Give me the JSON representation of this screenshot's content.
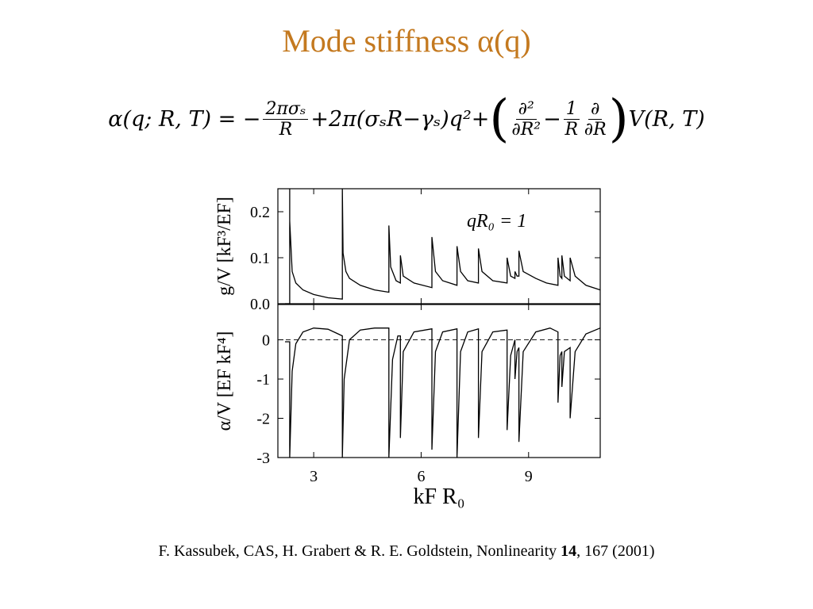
{
  "title": "Mode stiffness α(q)",
  "equation": [
    "α(q; R, T) = −",
    {
      "num": "2πσₛ",
      "den": "R"
    },
    "+2π(σₛR−γₛ)q²+",
    "(",
    {
      "num": "∂²",
      "den": "∂R²"
    },
    "−",
    {
      "num": "1",
      "den": "R"
    },
    {
      "num": "∂",
      "den": "∂R"
    },
    ")",
    "V(R, T)"
  ],
  "chart_data": [
    {
      "type": "line",
      "y_label": "g/V [kF³/EF]",
      "annotation": "qR₀ = 1",
      "x": [
        2.2,
        2.33,
        2.33,
        2.33,
        2.4,
        2.5,
        2.7,
        3.0,
        3.4,
        3.8,
        3.8,
        3.82,
        3.9,
        4.0,
        4.3,
        4.7,
        5.1,
        5.1,
        5.15,
        5.3,
        5.42,
        5.42,
        5.5,
        5.8,
        6.3,
        6.3,
        6.4,
        6.6,
        7.0,
        7.0,
        7.1,
        7.3,
        7.6,
        7.6,
        7.7,
        8.0,
        8.4,
        8.4,
        8.5,
        8.62,
        8.62,
        8.68,
        8.73,
        8.73,
        8.85,
        9.2,
        9.5,
        9.82,
        9.82,
        9.88,
        9.93,
        9.93,
        10.0,
        10.16,
        10.16,
        10.3,
        10.6,
        11.0
      ],
      "series": [
        {
          "color": "#000000",
          "values": [
            0,
            0,
            0.25,
            0.18,
            0.07,
            0.045,
            0.03,
            0.02,
            0.013,
            0.01,
            0.25,
            0.11,
            0.07,
            0.055,
            0.04,
            0.03,
            0.025,
            0.17,
            0.08,
            0.05,
            0.045,
            0.105,
            0.06,
            0.045,
            0.035,
            0.145,
            0.07,
            0.05,
            0.04,
            0.125,
            0.07,
            0.05,
            0.045,
            0.12,
            0.07,
            0.05,
            0.045,
            0.1,
            0.06,
            0.055,
            0.07,
            0.06,
            0.06,
            0.115,
            0.07,
            0.055,
            0.045,
            0.04,
            0.1,
            0.06,
            0.055,
            0.105,
            0.06,
            0.05,
            0.1,
            0.06,
            0.04,
            0.03
          ]
        }
      ],
      "xlim": [
        2,
        11
      ],
      "xticks": [
        3,
        6,
        9
      ],
      "ylim": [
        0,
        0.25
      ],
      "yticks": [
        {
          "value": 0,
          "label": "0.0"
        },
        0.1,
        0.2
      ]
    },
    {
      "type": "line",
      "y_label": "α/V [EF kF⁴]",
      "x_label": "kF R₀",
      "hline": 0,
      "x": [
        2.2,
        2.33,
        2.33,
        2.4,
        2.5,
        2.7,
        3.0,
        3.4,
        3.8,
        3.8,
        3.85,
        4.0,
        4.3,
        4.7,
        5.1,
        5.1,
        5.2,
        5.35,
        5.42,
        5.42,
        5.5,
        5.8,
        6.3,
        6.3,
        6.4,
        6.6,
        7.0,
        7.0,
        7.1,
        7.3,
        7.6,
        7.6,
        7.7,
        8.0,
        8.4,
        8.4,
        8.5,
        8.62,
        8.62,
        8.68,
        8.73,
        8.73,
        8.85,
        9.2,
        9.6,
        9.82,
        9.82,
        9.88,
        9.93,
        9.93,
        10.0,
        10.16,
        10.16,
        10.3,
        10.6,
        11.0
      ],
      "series": [
        {
          "color": "#000000",
          "values": [
            -0.05,
            -0.05,
            -3,
            -0.8,
            -0.1,
            0.2,
            0.3,
            0.27,
            0.1,
            -3,
            -1,
            0,
            0.25,
            0.3,
            0.3,
            -3,
            -0.5,
            0.1,
            0.1,
            -2.5,
            -0.3,
            0.2,
            0.28,
            -2.8,
            -0.3,
            0.2,
            0.28,
            -3,
            -0.3,
            0.2,
            0.28,
            -2.5,
            -0.3,
            0.2,
            0.25,
            -2.3,
            -0.4,
            0,
            -1,
            -0.3,
            -0.2,
            -2.6,
            -0.3,
            0.2,
            0.3,
            0.2,
            -1.6,
            -0.4,
            -0.3,
            -1.2,
            -0.3,
            -0.2,
            -2,
            -0.3,
            0.15,
            0.3
          ]
        }
      ],
      "xlim": [
        2,
        11
      ],
      "xticks": [
        3,
        6,
        9
      ],
      "ylim": [
        -3,
        0.9
      ],
      "yticks": [
        0,
        -1,
        -2,
        -3
      ]
    }
  ],
  "citation": {
    "text": "F. Kassubek, CAS, H. Grabert & R. E. Goldstein, Nonlinearity ",
    "volume": "14",
    "rest": ", 167 (2001)"
  }
}
